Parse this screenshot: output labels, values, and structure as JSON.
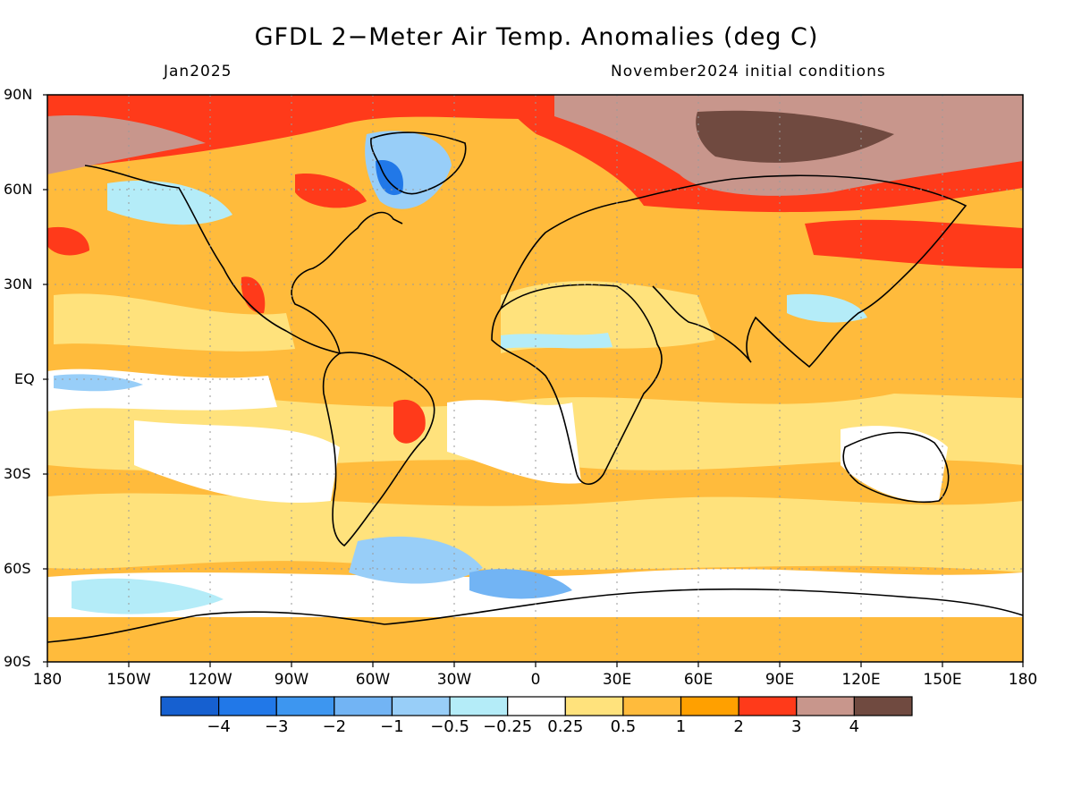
{
  "header": {
    "title": "GFDL 2−Meter Air Temp. Anomalies (deg C)",
    "valid_month": "Jan2025",
    "init_conditions": "November2024 initial conditions"
  },
  "axes": {
    "lat_labels": [
      "90N",
      "60N",
      "30N",
      "EQ",
      "30S",
      "60S",
      "90S"
    ],
    "lon_labels": [
      "180",
      "150W",
      "120W",
      "90W",
      "60W",
      "30W",
      "0",
      "30E",
      "60E",
      "90E",
      "120E",
      "150E",
      "180"
    ]
  },
  "legend": {
    "colors": [
      "#1660d0",
      "#2178e8",
      "#3d96f0",
      "#72b4f4",
      "#98cef8",
      "#b4ecf8",
      "#ffffff",
      "#ffe27c",
      "#ffbb3c",
      "#ffa000",
      "#ff3a1a",
      "#c8968c",
      "#704a40"
    ],
    "labels": [
      "−4",
      "−3",
      "−2",
      "−1",
      "−0.5",
      "−0.25",
      "0.25",
      "0.5",
      "1",
      "2",
      "3",
      "4"
    ]
  },
  "colors": {
    "base": "#ffbb3c",
    "frame": "#000000",
    "grid": "#9a9a9a"
  }
}
